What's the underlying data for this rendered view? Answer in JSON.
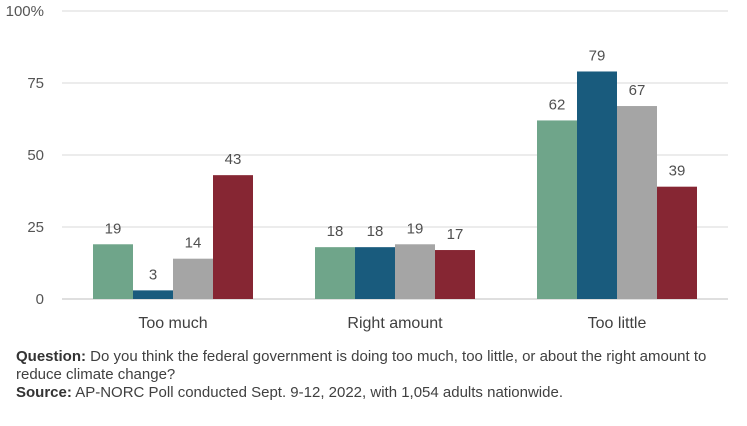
{
  "chart_data": {
    "type": "bar",
    "categories": [
      "Too much",
      "Right amount",
      "Too little"
    ],
    "series": [
      {
        "values": [
          19,
          18,
          62
        ],
        "color": "#6fa58a"
      },
      {
        "values": [
          3,
          18,
          79
        ],
        "color": "#195b7d"
      },
      {
        "values": [
          14,
          19,
          67
        ],
        "color": "#a5a5a5"
      },
      {
        "values": [
          43,
          17,
          39
        ],
        "color": "#862633"
      }
    ],
    "yticks": [
      "0",
      "25",
      "50",
      "75",
      "100%"
    ],
    "ylim": [
      0,
      100
    ],
    "grid": true,
    "legend": "none"
  },
  "notes": {
    "question_label": "Question:",
    "question_text": " Do you think the federal government is doing too much, too little, or about the right amount to reduce climate change?",
    "source_label": "Source:",
    "source_text": " AP-NORC Poll conducted Sept. 9-12, 2022, with 1,054 adults nationwide."
  }
}
